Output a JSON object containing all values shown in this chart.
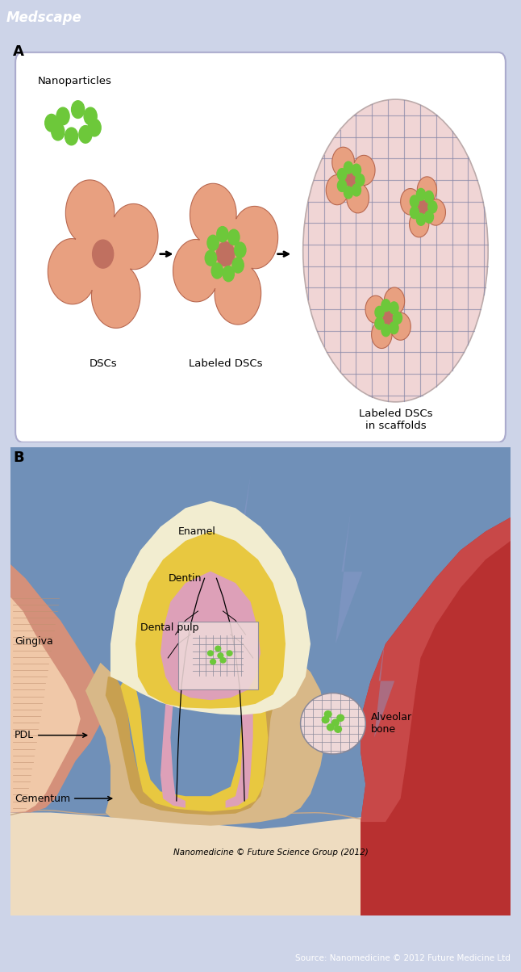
{
  "header_color": "#2878B0",
  "header_text": "Medscape",
  "header_text_color": "#FFFFFF",
  "footer_color": "#1E6080",
  "footer_text": "Source: Nanomedicine © 2012 Future Medicine Ltd",
  "footer_text_color": "#FFFFFF",
  "bg_color": "#CDD4E8",
  "panel_a_bg": "#FFFFFF",
  "panel_a_label": "A",
  "panel_b_label": "B",
  "nanoparticles_label": "Nanoparticles",
  "dscs_label": "DSCs",
  "labeled_dscs_label": "Labeled DSCs",
  "labeled_dscs_scaffolds_label": "Labeled DSCs\nin scaffolds",
  "cell_color": "#E8A080",
  "cell_color2": "#C87860",
  "cell_dark": "#B86850",
  "nanoparticle_color": "#6DC83A",
  "nuc_color": "#C07060",
  "scaffold_bg_color": "#F0D5D5",
  "scaffold_line_color": "#8888A8",
  "panel_b_bg": "#7090B8",
  "gingiva_outer": "#D4907A",
  "gingiva_inner": "#E8B898",
  "gingiva_light": "#F0C8A8",
  "bone_dark": "#B83030",
  "bone_light": "#C84848",
  "pdl_color": "#D8B888",
  "cementum_color": "#C8A050",
  "dentin_color": "#E8C840",
  "enamel_color": "#F2EDD0",
  "pulp_color": "#DDA0B8",
  "bottom_tissue": "#EEDCC0",
  "label_enamel": "Enamel",
  "label_dentin": "Dentin",
  "label_pulp": "Dental pulp",
  "label_gingiva": "Gingiva",
  "label_pdl": "PDL",
  "label_cementum": "Cementum",
  "label_alveolar": "Alveolar\nbone",
  "label_nanomedicine": "Nanomedicine © Future Science Group (2012)"
}
